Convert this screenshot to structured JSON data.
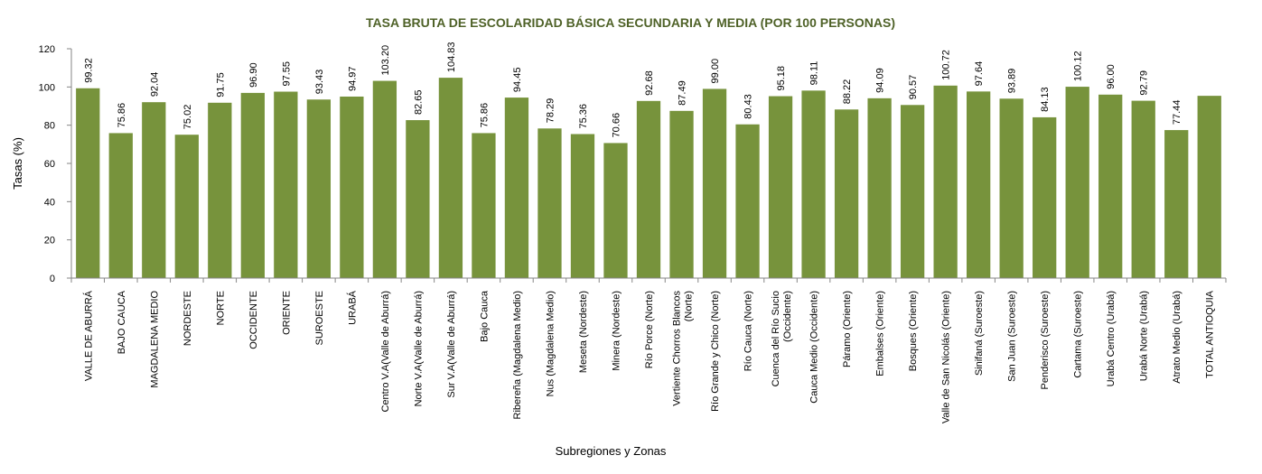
{
  "chart_data": {
    "type": "bar",
    "title": "TASA BRUTA DE ESCOLARIDAD BÁSICA SECUNDARIA Y MEDIA (POR 100 PERSONAS)",
    "xlabel": "Subregiones y Zonas",
    "ylabel": "Tasas (%)",
    "ylim": [
      0,
      120
    ],
    "yticks": [
      "0",
      "20",
      "40",
      "60",
      "80",
      "100",
      "120"
    ],
    "grid": false,
    "categories": [
      [
        "VALLE DE ABURRÁ"
      ],
      [
        "BAJO CAUCA"
      ],
      [
        "MAGDALENA MEDIO"
      ],
      [
        "NORDESTE"
      ],
      [
        "NORTE"
      ],
      [
        "OCCIDENTE"
      ],
      [
        "ORIENTE"
      ],
      [
        "SUROESTE"
      ],
      [
        "URABÁ"
      ],
      [
        "Centro V.A(Valle de Aburrá)"
      ],
      [
        "Norte V.A(Valle de Aburrá)"
      ],
      [
        "Sur V.A(Valle de Aburrá)"
      ],
      [
        "Bajo Cauca"
      ],
      [
        "Ribereña (Magdalena Medio)"
      ],
      [
        "Nus (Magdalena Medio)"
      ],
      [
        "Meseta (Nordeste)"
      ],
      [
        "Minera (Nordeste)"
      ],
      [
        "Río Porce (Norte)"
      ],
      [
        "Vertiente Chorros Blancos",
        "(Norte)"
      ],
      [
        "Río Grande y Chico (Norte)"
      ],
      [
        "Río Cauca (Norte)"
      ],
      [
        "Cuenca del Río Sucio",
        "(Occidente)"
      ],
      [
        "Cauca Medio (Occidente)"
      ],
      [
        "Páramo (Oriente)"
      ],
      [
        "Embalses (Oriente)"
      ],
      [
        "Bosques (Oriente)"
      ],
      [
        "Valle de San Nicolás (Oriente)"
      ],
      [
        "Sinifaná (Suroeste)"
      ],
      [
        "San Juan (Suroeste)"
      ],
      [
        "Penderisco (Suroeste)"
      ],
      [
        "Cartama (Suroeste)"
      ],
      [
        "Urabá Centro (Urabá)"
      ],
      [
        "Urabá Norte (Urabá)"
      ],
      [
        "Atrato Medio (Urabá)"
      ],
      [
        "TOTAL ANTIOQUIA"
      ]
    ],
    "values": [
      99.32,
      75.86,
      92.04,
      75.02,
      91.75,
      96.9,
      97.55,
      93.43,
      94.97,
      103.2,
      82.65,
      104.83,
      75.86,
      94.45,
      78.29,
      75.36,
      70.66,
      92.68,
      87.49,
      99.0,
      80.43,
      95.18,
      98.11,
      88.22,
      94.09,
      90.57,
      100.72,
      97.64,
      93.89,
      84.13,
      100.12,
      96.0,
      92.79,
      77.44,
      95.37
    ],
    "data_labels": [
      "99.32",
      "75.86",
      "92.04",
      "75.02",
      "91.75",
      "96.90",
      "97.55",
      "93.43",
      "94.97",
      "103.20",
      "82.65",
      "104.83",
      "75.86",
      "94.45",
      "78.29",
      "75.36",
      "70.66",
      "92.68",
      "87.49",
      "99.00",
      "80.43",
      "95.18",
      "98.11",
      "88.22",
      "94.09",
      "90.57",
      "100.72",
      "97.64",
      "93.89",
      "84.13",
      "100.12",
      "96.00",
      "92.79",
      "77.44",
      ""
    ],
    "colors": {
      "bar": "#77933c",
      "title": "#4f6228",
      "axis": "#868686"
    }
  }
}
